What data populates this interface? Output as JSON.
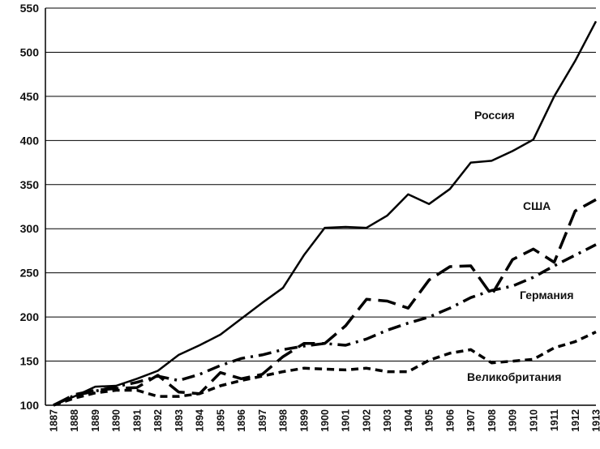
{
  "chart_data": {
    "type": "line",
    "title": "",
    "xlabel": "",
    "ylabel": "",
    "ylim": [
      100,
      550
    ],
    "yticks": [
      100,
      150,
      200,
      250,
      300,
      350,
      400,
      450,
      500,
      550
    ],
    "grid": "horizontal",
    "legend": "inline labels",
    "x": [
      "1887",
      "1888",
      "1889",
      "1890",
      "1891",
      "1892",
      "1893",
      "1894",
      "1895",
      "1896",
      "1897",
      "1898",
      "1899",
      "1900",
      "1901",
      "1902",
      "1903",
      "1904",
      "1905",
      "1906",
      "1907",
      "1908",
      "1909",
      "1910",
      "1911",
      "1912",
      "1913"
    ],
    "series": [
      {
        "name": "Россия",
        "style": "solid",
        "values": [
          100,
          110,
          121,
          122,
          130,
          139,
          157,
          168,
          180,
          198,
          216,
          233,
          270,
          301,
          302,
          301,
          315,
          339,
          328,
          345,
          375,
          377,
          388,
          401,
          450,
          490,
          535
        ]
      },
      {
        "name": "США",
        "style": "long-dash",
        "values": [
          100,
          112,
          117,
          119,
          120,
          134,
          115,
          113,
          137,
          130,
          135,
          155,
          170,
          170,
          190,
          220,
          218,
          210,
          242,
          257,
          258,
          225,
          265,
          277,
          262,
          320,
          333
        ]
      },
      {
        "name": "Германия",
        "style": "dash-dot",
        "values": [
          100,
          111,
          116,
          121,
          126,
          133,
          128,
          135,
          145,
          153,
          157,
          163,
          167,
          170,
          168,
          175,
          185,
          193,
          200,
          210,
          222,
          230,
          235,
          245,
          258,
          270,
          282
        ]
      },
      {
        "name": "Великобритания",
        "style": "short-dash",
        "values": [
          100,
          108,
          114,
          117,
          117,
          110,
          110,
          113,
          122,
          128,
          133,
          138,
          142,
          141,
          140,
          142,
          138,
          138,
          151,
          159,
          163,
          148,
          150,
          152,
          165,
          172,
          183
        ]
      }
    ]
  }
}
